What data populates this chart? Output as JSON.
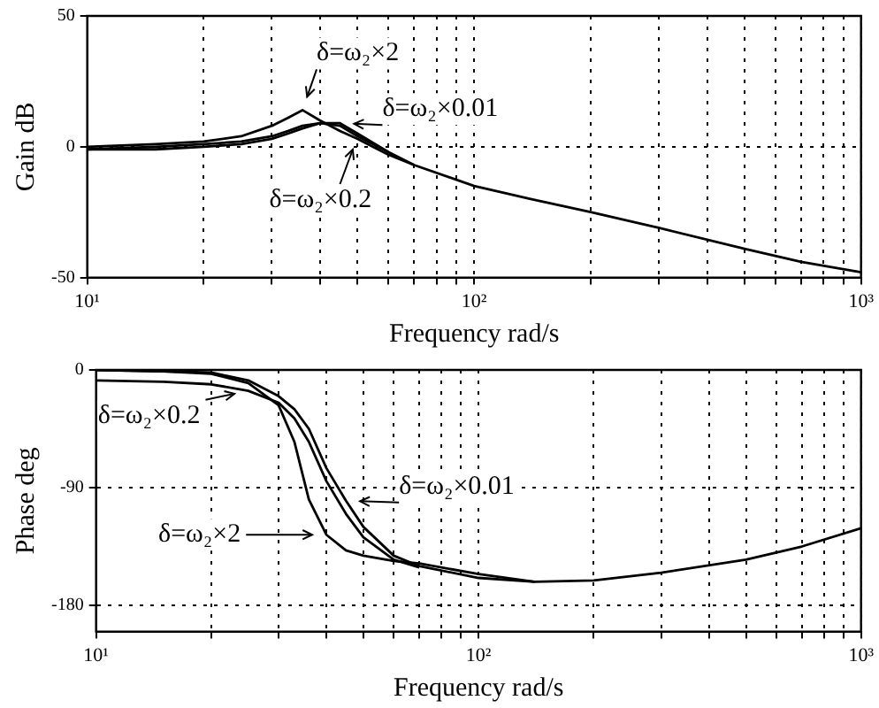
{
  "chart_data": [
    {
      "type": "line",
      "ylabel": "Gain dB",
      "xlabel": "Frequency rad/s",
      "log": "x",
      "grid": true,
      "marker": "none",
      "line_style": "solid",
      "xlim": [
        10,
        1000
      ],
      "ylim": [
        -50,
        50
      ],
      "yticks": [
        -50,
        0,
        50
      ],
      "xticks": [
        {
          "value": 10,
          "label": "10¹"
        },
        {
          "value": 20,
          "label": null
        },
        {
          "value": 30,
          "label": null
        },
        {
          "value": 40,
          "label": null
        },
        {
          "value": 50,
          "label": null
        },
        {
          "value": 60,
          "label": null
        },
        {
          "value": 70,
          "label": null
        },
        {
          "value": 80,
          "label": null
        },
        {
          "value": 90,
          "label": null
        },
        {
          "value": 100,
          "label": "10²"
        },
        {
          "value": 200,
          "label": null
        },
        {
          "value": 300,
          "label": null
        },
        {
          "value": 400,
          "label": null
        },
        {
          "value": 500,
          "label": null
        },
        {
          "value": 600,
          "label": null
        },
        {
          "value": 700,
          "label": null
        },
        {
          "value": 800,
          "label": null
        },
        {
          "value": 900,
          "label": null
        },
        {
          "value": 1000,
          "label": "10³"
        }
      ],
      "x": [
        10,
        15,
        20,
        25,
        30,
        33,
        36,
        40,
        45,
        50,
        60,
        70,
        100,
        140,
        200,
        300,
        500,
        700,
        1000
      ],
      "series": [
        {
          "name": "δ=ω₂×2",
          "color": "#000000",
          "values": [
            0,
            1,
            2,
            4,
            8,
            11,
            14,
            10,
            6,
            3,
            -3,
            -7,
            -15,
            -20,
            -25,
            -31,
            -39,
            -44,
            -48
          ]
        },
        {
          "name": "δ=ω₂×0.01",
          "color": "#000000",
          "x": [
            10,
            15,
            20,
            25,
            30,
            33,
            36,
            40,
            45,
            50,
            60,
            70
          ],
          "values": [
            -1,
            0,
            1,
            2,
            4,
            6,
            8,
            9,
            9,
            5,
            -2,
            -7
          ]
        },
        {
          "name": "δ=ω₂×0.2",
          "color": "#000000",
          "x": [
            10,
            15,
            20,
            25,
            30,
            33,
            36,
            40,
            45,
            50,
            60
          ],
          "values": [
            -1,
            -1,
            0,
            1,
            3,
            5,
            7,
            9,
            8,
            4,
            -2
          ]
        }
      ]
    },
    {
      "type": "line",
      "ylabel": "Phase deg",
      "xlabel": "Frequency rad/s",
      "log": "x",
      "grid": true,
      "marker": "none",
      "line_style": "solid",
      "xlim": [
        10,
        1000
      ],
      "ylim": [
        -200,
        0
      ],
      "yticks": [
        0,
        -90,
        -180
      ],
      "xticks": [
        {
          "value": 10,
          "label": "10¹"
        },
        {
          "value": 20,
          "label": null
        },
        {
          "value": 30,
          "label": null
        },
        {
          "value": 40,
          "label": null
        },
        {
          "value": 50,
          "label": null
        },
        {
          "value": 60,
          "label": null
        },
        {
          "value": 70,
          "label": null
        },
        {
          "value": 80,
          "label": null
        },
        {
          "value": 90,
          "label": null
        },
        {
          "value": 100,
          "label": "10²"
        },
        {
          "value": 200,
          "label": null
        },
        {
          "value": 300,
          "label": null
        },
        {
          "value": 400,
          "label": null
        },
        {
          "value": 500,
          "label": null
        },
        {
          "value": 600,
          "label": null
        },
        {
          "value": 700,
          "label": null
        },
        {
          "value": 800,
          "label": null
        },
        {
          "value": 900,
          "label": null
        },
        {
          "value": 1000,
          "label": "10³"
        }
      ],
      "x": [
        10,
        15,
        20,
        25,
        30,
        33,
        36,
        40,
        45,
        50,
        60,
        70,
        100,
        140,
        200,
        300,
        500,
        700,
        1000
      ],
      "series": [
        {
          "name": "δ=ω₂×2",
          "color": "#000000",
          "x": [
            10,
            15,
            20,
            25,
            30,
            33,
            36,
            40,
            45,
            50,
            60,
            70,
            100,
            140
          ],
          "values": [
            0,
            -1,
            -3,
            -10,
            -27,
            -55,
            -99,
            -126,
            -138,
            -142,
            -146,
            -148,
            -156,
            -162
          ]
        },
        {
          "name": "δ=ω₂×0.01",
          "color": "#000000",
          "values": [
            0,
            -1,
            -2,
            -8,
            -20,
            -30,
            -45,
            -75,
            -100,
            -120,
            -142,
            -150,
            -159,
            -162,
            -161,
            -155,
            -145,
            -135,
            -121
          ]
        },
        {
          "name": "δ=ω₂×0.2",
          "color": "#000000",
          "x": [
            10,
            15,
            20,
            25,
            30,
            33,
            36,
            40,
            45,
            50,
            60,
            70
          ],
          "values": [
            -8,
            -9,
            -11,
            -16,
            -25,
            -37,
            -55,
            -85,
            -110,
            -128,
            -145,
            -151
          ]
        }
      ]
    }
  ]
}
